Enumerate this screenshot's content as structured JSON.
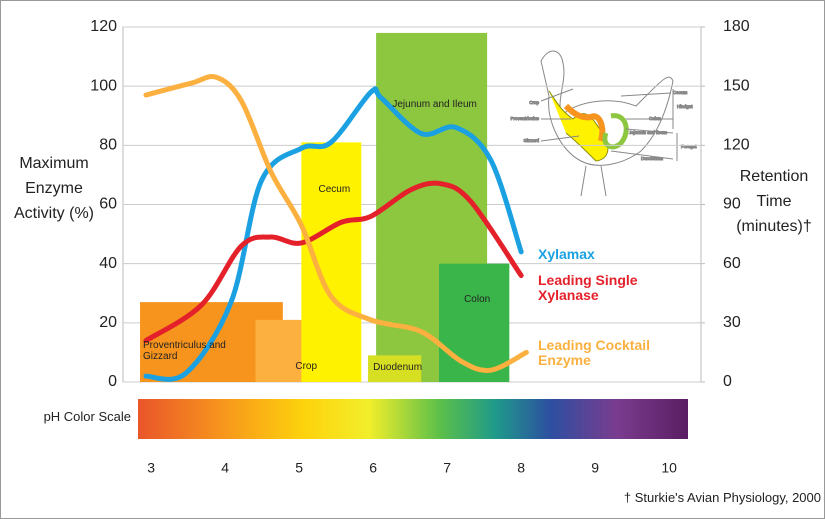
{
  "chart_data": {
    "type": "bar-line",
    "y_label": "Maximum Enzyme Activity (%)",
    "y2_label": "Retention Time (minutes)†",
    "xlim": [
      2.62,
      10.43
    ],
    "xticks": [
      3,
      4,
      5,
      6,
      7,
      8,
      9,
      10
    ],
    "ylim": [
      0,
      120
    ],
    "yticks": [
      0,
      20,
      40,
      60,
      80,
      100,
      120
    ],
    "y2lim": [
      0,
      180
    ],
    "y2ticks": [
      0,
      30,
      60,
      90,
      120,
      150,
      180
    ],
    "grid": true,
    "bars": [
      {
        "name": "Proventriculus and Gizzard",
        "x": [
          2.85,
          4.78
        ],
        "value": 27,
        "color": "#f7941d"
      },
      {
        "name": "Crop",
        "x": [
          4.41,
          5.7
        ],
        "value": 21,
        "color": "#fbb040"
      },
      {
        "name": "Cecum",
        "x": [
          5.03,
          5.84
        ],
        "value": 81,
        "color": "#fff200"
      },
      {
        "name": "Jejunum and Ileum",
        "x": [
          6.04,
          7.54
        ],
        "value": 118,
        "color": "#8dc63f"
      },
      {
        "name": "Duodenum",
        "x": [
          5.93,
          6.65
        ],
        "value": 9,
        "color": "#d7df23"
      },
      {
        "name": "Colon",
        "x": [
          6.89,
          7.84
        ],
        "value": 40,
        "color": "#39b54a"
      }
    ],
    "series": [
      {
        "name": "Xylamax",
        "color": "#1ba1e2",
        "x": [
          2.93,
          3.47,
          4.08,
          4.49,
          5.03,
          5.43,
          5.97,
          6.11,
          6.65,
          7.12,
          7.59,
          8.0
        ],
        "values": [
          2,
          3,
          27,
          68,
          79,
          81,
          98,
          96,
          84,
          86,
          75,
          44
        ]
      },
      {
        "name": "Leading Single Xylanase",
        "color": "#e4202a",
        "x": [
          2.93,
          3.68,
          4.22,
          4.62,
          5.03,
          5.57,
          5.97,
          6.51,
          6.92,
          7.32,
          8.0
        ],
        "values": [
          14,
          26,
          46,
          49,
          47,
          54,
          56,
          65,
          67,
          61,
          36
        ]
      },
      {
        "name": "Leading Cocktail Enzyme",
        "color": "#fbb040",
        "x": [
          2.93,
          3.54,
          3.88,
          4.22,
          4.62,
          5.03,
          5.43,
          5.97,
          6.65,
          7.19,
          7.59,
          8.07
        ],
        "values": [
          97,
          101,
          103,
          95,
          71,
          53,
          29,
          21,
          17,
          7,
          4,
          10
        ]
      }
    ],
    "ph_scale_label": "pH Color Scale",
    "inset_labels": [
      "Crop",
      "Proventriculus",
      "Gizzard",
      "Cecum",
      "Colon",
      "Jejunum and Ileum",
      "Duodenum",
      "Hindgut",
      "Foregut"
    ],
    "footnote": "† Sturkie's Avian Physiology, 2000"
  }
}
